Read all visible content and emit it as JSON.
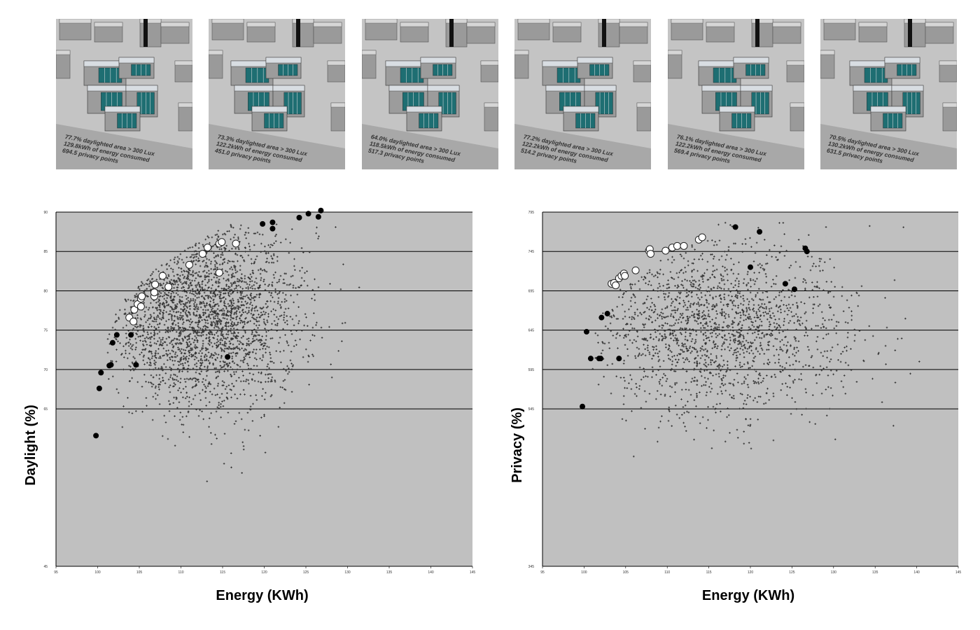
{
  "thumbnails": [
    {
      "daylight": "77.7% daylighted area > 300 Lux",
      "energy": "129.8kWh of energy consumed",
      "privacy": "694.5 privacy points"
    },
    {
      "daylight": "73.3% daylighted area > 300 Lux",
      "energy": "122.2kWh of energy consumed",
      "privacy": "451.0 privacy points"
    },
    {
      "daylight": "64.0% daylighted area > 300 Lux",
      "energy": "118.5kWh of energy consumed",
      "privacy": "517.3 privacy points"
    },
    {
      "daylight": "77.2% daylighted area > 300 Lux",
      "energy": "122.2kWh of energy consumed",
      "privacy": "514.2 privacy points"
    },
    {
      "daylight": "76.1% daylighted area > 300 Lux",
      "energy": "122.2kWh of energy consumed",
      "privacy": "569.4 privacy points"
    },
    {
      "daylight": "70.5% daylighted area > 300 Lux",
      "energy": "130.2kWh of energy consumed",
      "privacy": "631.5 privacy points"
    }
  ],
  "colors": {
    "plot_bg": "#c0c0c0",
    "dots": "#333333",
    "building_gray": "#9c9c9c",
    "window_teal": "#1e6e72"
  },
  "chart_data": [
    {
      "type": "scatter",
      "title": "",
      "xlabel": "Energy (KWh)",
      "ylabel": "Daylight (%)",
      "xlim": [
        95,
        145
      ],
      "ylim": [
        45,
        90
      ],
      "xticks": [
        "95",
        "100",
        "105",
        "110",
        "115",
        "120",
        "125",
        "130",
        "135",
        "140",
        "145"
      ],
      "yticks": [
        {
          "value": 45,
          "label": "45"
        },
        {
          "value": 65,
          "label": "65"
        },
        {
          "value": 70,
          "label": "70"
        },
        {
          "value": 75,
          "label": "75"
        },
        {
          "value": 80,
          "label": "80"
        },
        {
          "value": 85,
          "label": "85"
        },
        {
          "value": 90,
          "label": "90"
        }
      ],
      "gridlines": [
        65,
        70,
        75,
        80,
        85,
        90
      ],
      "cloud": {
        "count": 2600,
        "seed": 7,
        "x_range": [
          101,
          141
        ],
        "center_x": 111,
        "center_y": 77,
        "spread_x": 5.5,
        "spread_y": 6
      },
      "series": [
        {
          "name": "",
          "style": "black-dot",
          "points": [
            [
              99.8,
              61.6
            ],
            [
              100.2,
              67.6
            ],
            [
              100.4,
              69.6
            ],
            [
              101.4,
              70.5
            ],
            [
              101.6,
              70.6
            ],
            [
              101.8,
              73.4
            ],
            [
              102.3,
              74.4
            ],
            [
              104.0,
              74.4
            ],
            [
              104.6,
              70.6
            ],
            [
              115.6,
              71.6
            ],
            [
              119.8,
              88.5
            ],
            [
              121.0,
              88.7
            ],
            [
              121.0,
              87.9
            ],
            [
              124.2,
              89.3
            ],
            [
              125.3,
              89.8
            ],
            [
              126.5,
              89.4
            ],
            [
              126.8,
              90.2
            ]
          ]
        },
        {
          "name": "",
          "style": "white-dot",
          "points": [
            [
              103.8,
              76.6
            ],
            [
              104.3,
              76.1
            ],
            [
              104.4,
              77.6
            ],
            [
              104.8,
              78.3
            ],
            [
              105.2,
              78.0
            ],
            [
              105.2,
              79.0
            ],
            [
              105.3,
              79.3
            ],
            [
              106.8,
              79.3
            ],
            [
              106.8,
              79.8
            ],
            [
              106.9,
              80.8
            ],
            [
              107.8,
              81.9
            ],
            [
              108.5,
              80.5
            ],
            [
              111.0,
              83.3
            ],
            [
              112.6,
              84.7
            ],
            [
              113.2,
              85.5
            ],
            [
              114.6,
              86.0
            ],
            [
              114.9,
              86.2
            ],
            [
              114.6,
              82.3
            ],
            [
              116.6,
              86.0
            ]
          ]
        }
      ]
    },
    {
      "type": "scatter",
      "title": "",
      "xlabel": "Energy (KWh)",
      "ylabel": "Privacy (%)",
      "xlim": [
        95,
        145
      ],
      "ylim": [
        345,
        795
      ],
      "xticks": [
        "95",
        "100",
        "105",
        "110",
        "115",
        "120",
        "125",
        "130",
        "135",
        "140",
        "145"
      ],
      "yticks": [
        {
          "value": 345,
          "label": "345"
        },
        {
          "value": 545,
          "label": "545"
        },
        {
          "value": 595,
          "label": "595"
        },
        {
          "value": 645,
          "label": "645"
        },
        {
          "value": 695,
          "label": "695"
        },
        {
          "value": 745,
          "label": "745"
        },
        {
          "value": 795,
          "label": "795"
        }
      ],
      "gridlines": [
        545,
        595,
        645,
        695,
        745,
        795
      ],
      "cloud": {
        "count": 1800,
        "seed": 11,
        "x_range": [
          101,
          141
        ],
        "center_x": 114,
        "center_y": 650,
        "spread_x": 7.5,
        "spread_y": 55
      },
      "series": [
        {
          "name": "",
          "style": "black-dot",
          "points": [
            [
              99.8,
              548
            ],
            [
              100.3,
              643
            ],
            [
              100.8,
              609
            ],
            [
              101.8,
              609
            ],
            [
              102.0,
              609
            ],
            [
              102.1,
              661
            ],
            [
              102.8,
              666
            ],
            [
              104.2,
              609
            ],
            [
              118.2,
              776
            ],
            [
              120.0,
              725
            ],
            [
              121.1,
              770
            ],
            [
              124.2,
              704
            ],
            [
              125.3,
              697
            ],
            [
              126.6,
              749
            ],
            [
              126.8,
              745
            ]
          ]
        },
        {
          "name": "",
          "style": "white-dot",
          "points": [
            [
              103.3,
              704
            ],
            [
              103.6,
              705
            ],
            [
              103.8,
              702
            ],
            [
              104.2,
              711
            ],
            [
              104.5,
              714
            ],
            [
              104.8,
              717
            ],
            [
              104.9,
              714
            ],
            [
              106.2,
              721
            ],
            [
              107.8,
              746
            ],
            [
              107.9,
              748
            ],
            [
              108.0,
              742
            ],
            [
              109.8,
              746
            ],
            [
              110.6,
              750
            ],
            [
              111.2,
              752
            ],
            [
              112.0,
              752
            ],
            [
              113.8,
              760
            ],
            [
              114.2,
              763
            ]
          ]
        }
      ]
    }
  ]
}
